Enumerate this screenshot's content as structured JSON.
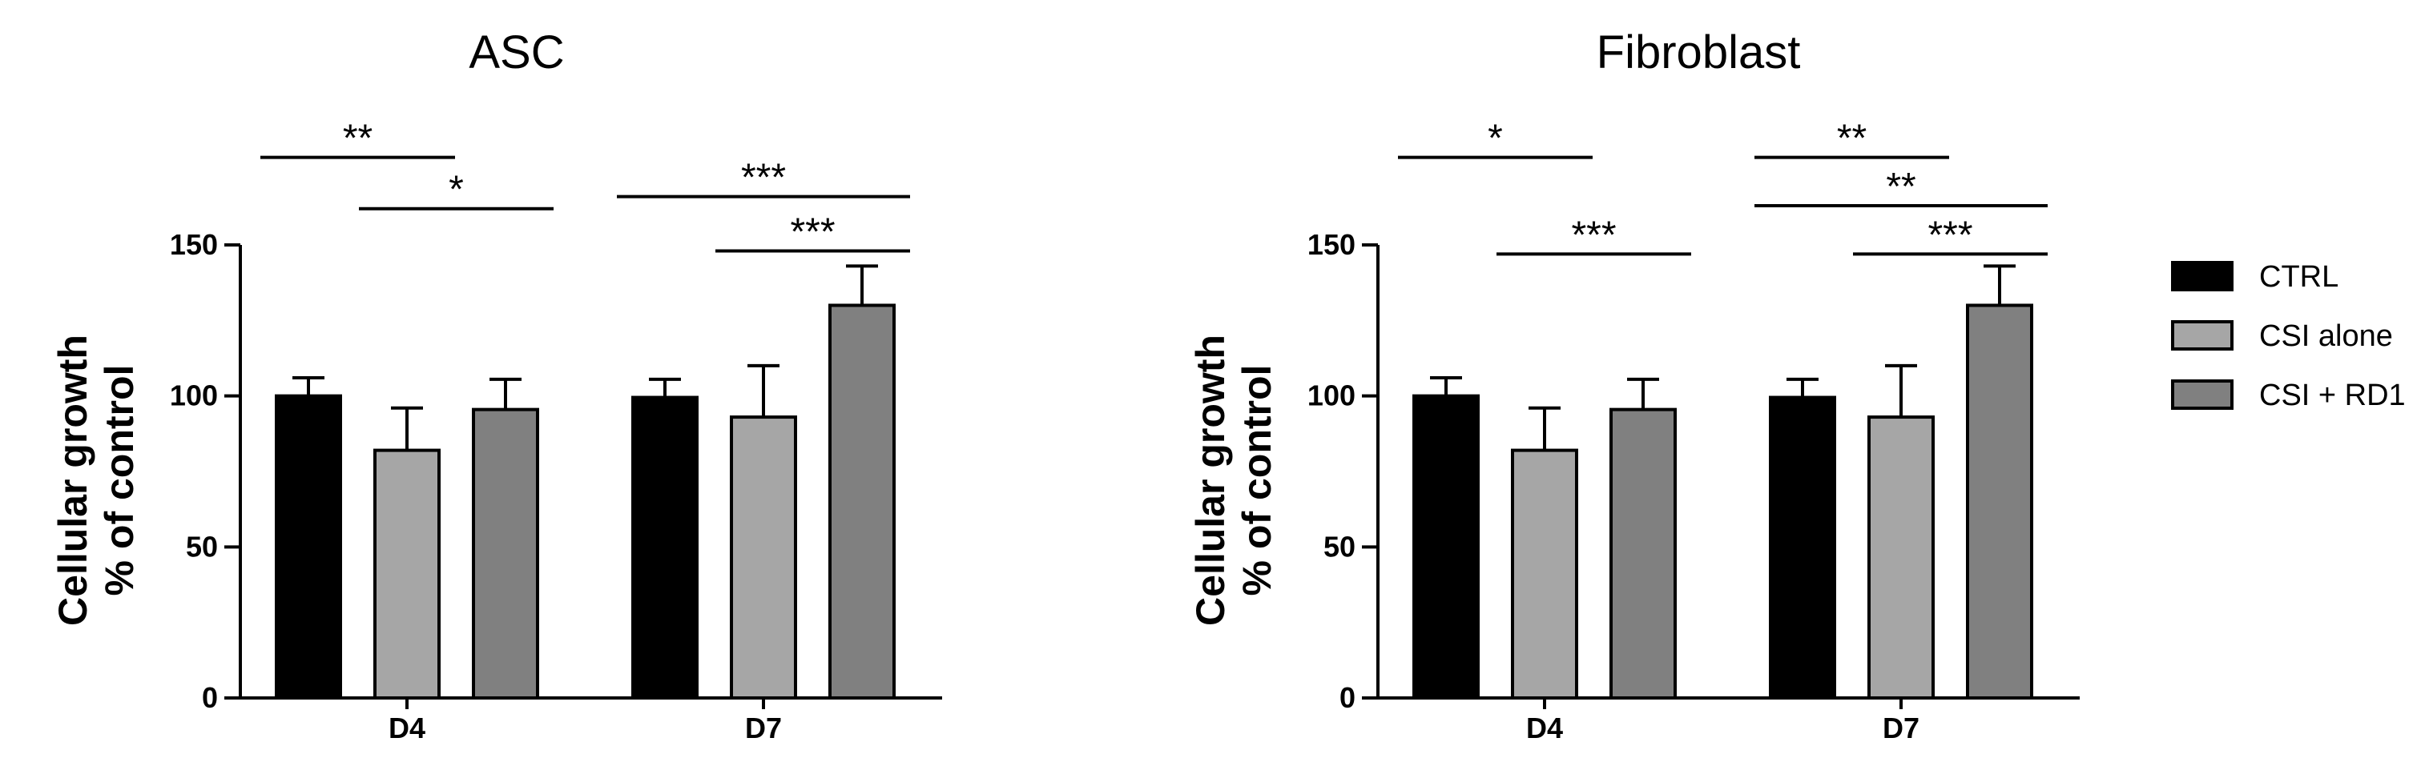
{
  "chart_data": [
    {
      "type": "bar",
      "title": "ASC",
      "xlabel": "",
      "ylabel_line1": "Cellular growth",
      "ylabel_line2": "% of control",
      "ylim": [
        0,
        150
      ],
      "yticks": [
        0,
        50,
        100,
        150
      ],
      "categories": [
        "D4",
        "D7"
      ],
      "series": [
        {
          "name": "CTRL",
          "values": [
            100,
            99.5
          ],
          "errors": [
            6,
            6
          ]
        },
        {
          "name": "CSI alone",
          "values": [
            82,
            93
          ],
          "errors": [
            14,
            17
          ]
        },
        {
          "name": "CSI + RD1",
          "values": [
            95.5,
            130
          ],
          "errors": [
            10,
            13
          ]
        }
      ],
      "significance": [
        {
          "category": 0,
          "from": 0,
          "to": 1,
          "label": "**",
          "y": 179
        },
        {
          "category": 0,
          "from": 1,
          "to": 2,
          "label": "*",
          "y": 162
        },
        {
          "category": 1,
          "from": 0,
          "to": 2,
          "label": "***",
          "y": 166
        },
        {
          "category": 1,
          "from": 1,
          "to": 2,
          "label": "***",
          "y": 148
        }
      ]
    },
    {
      "type": "bar",
      "title": "Fibroblast",
      "xlabel": "",
      "ylabel_line1": "Cellular growth",
      "ylabel_line2": "% of control",
      "ylim": [
        0,
        150
      ],
      "yticks": [
        0,
        50,
        100,
        150
      ],
      "categories": [
        "D4",
        "D7"
      ],
      "series": [
        {
          "name": "CTRL",
          "values": [
            100,
            99.5
          ],
          "errors": [
            6,
            6
          ]
        },
        {
          "name": "CSI alone",
          "values": [
            82,
            93
          ],
          "errors": [
            14,
            17
          ]
        },
        {
          "name": "CSI + RD1",
          "values": [
            95.5,
            130
          ],
          "errors": [
            10,
            13
          ]
        }
      ],
      "significance": [
        {
          "category": 0,
          "from": 0,
          "to": 1,
          "label": "*",
          "y": 179
        },
        {
          "category": 0,
          "from": 1,
          "to": 2,
          "label": "***",
          "y": 147
        },
        {
          "category": 1,
          "from": 0,
          "to": 1,
          "label": "**",
          "y": 179
        },
        {
          "category": 1,
          "from": 0,
          "to": 2,
          "label": "**",
          "y": 163
        },
        {
          "category": 1,
          "from": 1,
          "to": 2,
          "label": "***",
          "y": 147
        }
      ]
    }
  ],
  "legend": {
    "placement": "right",
    "items": [
      {
        "label": "CTRL",
        "color": "#000000"
      },
      {
        "label": "CSI alone",
        "color": "#a6a6a6"
      },
      {
        "label": "CSI + RD1",
        "color": "#808080"
      }
    ]
  }
}
